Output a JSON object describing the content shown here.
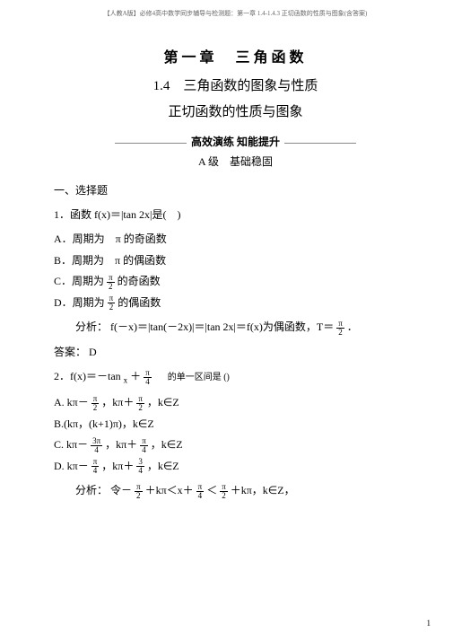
{
  "top_note": "【人教A版】必修4高中数学同步辅导与检测题：第一章 1.4-1.4.3 正切函数的性质与图象(含答案)",
  "chapter": "第一章　三角函数",
  "section": "1.4　三角函数的图象与性质",
  "subsection": "正切函数的性质与图象",
  "banner": "高效演练 知能提升",
  "level": "A 级　基础稳固",
  "part_label": "一、选择题",
  "q1": {
    "stem_prefix": "1．函数 f(x)＝|tan 2x|是(",
    "stem_suffix": "　)",
    "optA": "A．周期为　π 的奇函数",
    "optB": "B．周期为　π 的偶函数",
    "optC_prefix": "C．周期为 ",
    "optC_suffix": " 的奇函数",
    "optD_prefix": "D．周期为 ",
    "optD_suffix": " 的偶函数",
    "analysis_label": "分析：",
    "analysis_body_1": "f(－x)＝|tan(－2x)|＝|tan 2x|＝f(x)为偶函数，T＝",
    "analysis_body_2": "．",
    "answer_label": "答案：",
    "answer_value": "D"
  },
  "q2": {
    "stem_a": "2．f(x)＝－tan",
    "stem_b": "＋",
    "stem_note": "的单一区间是 ()",
    "optA_a": "A. kπ－",
    "optA_b": "，kπ＋",
    "optA_c": "，k∈Z",
    "optB": "B.(kπ，(k+1)π)，k∈Z",
    "optC_a": "C. kπ－",
    "optC_b": "，kπ＋",
    "optC_c": "，k∈Z",
    "optD_a": "D. kπ－",
    "optD_b": "，kπ＋",
    "optD_c": "，k∈Z",
    "analysis_label": "分析：",
    "analysis_a": "令－",
    "analysis_b": "＋kπ＜x＋",
    "analysis_c": "＜",
    "analysis_d": "＋kπ，k∈Z，"
  },
  "frac": {
    "pi": "π",
    "two": "2",
    "four": "4",
    "three_pi": "3π",
    "three": "3",
    "x": "x"
  },
  "page_number": "1"
}
